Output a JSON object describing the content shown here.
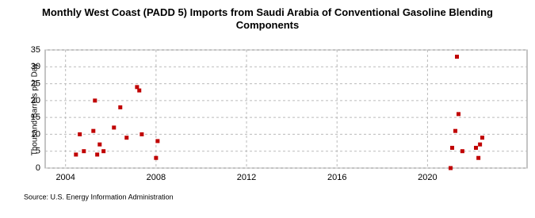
{
  "chart_data": {
    "type": "scatter",
    "title": "Monthly West Coast (PADD 5) Imports from Saudi Arabia of Conventional Gasoline Blending Components",
    "y_label": "Thousand Barrels per Day",
    "source": "Source: U.S. Energy Information Administration",
    "color": "#c00000",
    "grid": true,
    "xlim": [
      2003.1,
      2024.4
    ],
    "xticks": [
      2004,
      2008,
      2012,
      2016,
      2020
    ],
    "ylim": [
      0,
      35
    ],
    "yticks": [
      0,
      5,
      10,
      15,
      20,
      25,
      30,
      35
    ],
    "x": [
      2004.46,
      2004.63,
      2004.81,
      2005.23,
      2005.3,
      2005.4,
      2005.51,
      2005.68,
      2006.14,
      2006.42,
      2006.7,
      2007.16,
      2007.26,
      2007.37,
      2008.0,
      2008.07,
      2021.02,
      2021.09,
      2021.23,
      2021.3,
      2021.37,
      2021.54,
      2022.14,
      2022.25,
      2022.32,
      2022.42
    ],
    "values": [
      4,
      10,
      5,
      11,
      20,
      4,
      7,
      5,
      12,
      18,
      9,
      24,
      23,
      10,
      3,
      8,
      0,
      6,
      11,
      33,
      16,
      5,
      6,
      3,
      7,
      9
    ]
  }
}
